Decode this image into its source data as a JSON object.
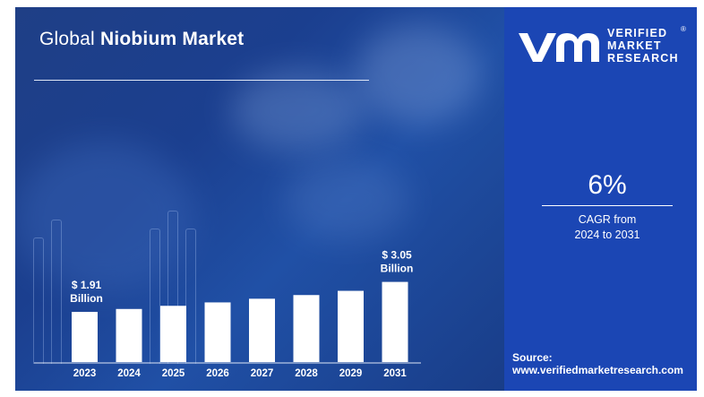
{
  "title": {
    "prefix": "Global",
    "emphasis": "Niobium Market"
  },
  "brand": {
    "line1": "VERIFIED",
    "line2": "MARKET",
    "line3": "RESEARCH",
    "registered": "®",
    "logo_icon": "vmr-logo-icon",
    "color": "#1b46b4"
  },
  "cagr": {
    "value": "6%",
    "label_line1": "CAGR from",
    "label_line2": "2024 to 2031"
  },
  "source": {
    "label": "Source:",
    "url": "www.verifiedmarketresearch.com"
  },
  "chart_data": {
    "type": "bar",
    "title": "Global Niobium Market",
    "categories": [
      "2023",
      "2024",
      "2025",
      "2026",
      "2027",
      "2028",
      "2029",
      "2031"
    ],
    "values": [
      1.91,
      2.02,
      2.14,
      2.27,
      2.41,
      2.55,
      2.71,
      3.05
    ],
    "unit": "Billion USD",
    "annotations": [
      {
        "category": "2023",
        "line1": "$ 1.91",
        "line2": "Billion"
      },
      {
        "category": "2031",
        "line1": "$ 3.05",
        "line2": "Billion"
      }
    ],
    "bar_color": "#ffffff",
    "axis": "category axis at bottom, no value axis",
    "grid": false,
    "legend": "none"
  }
}
